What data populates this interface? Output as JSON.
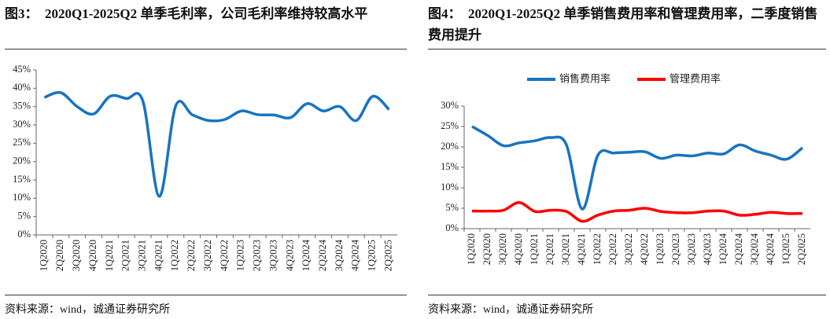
{
  "chart_data": [
    {
      "type": "line",
      "title": "图3：  2020Q1-2025Q2 单季毛利率，公司毛利率维持较高水平",
      "source": "资料来源：wind，诚通证券研究所",
      "categories": [
        "1Q2020",
        "2Q2020",
        "3Q2020",
        "4Q2020",
        "1Q2021",
        "2Q2021",
        "3Q2021",
        "4Q2021",
        "1Q2022",
        "2Q2022",
        "3Q2022",
        "4Q2022",
        "1Q2023",
        "2Q2023",
        "3Q2023",
        "4Q2023",
        "1Q2024",
        "2Q2024",
        "3Q2024",
        "4Q2024",
        "1Q2025",
        "2Q2025"
      ],
      "series": [
        {
          "color": "#1874c1",
          "values": [
            37.5,
            38.8,
            35,
            33,
            37.8,
            37.2,
            36.5,
            10.5,
            35.2,
            32.8,
            31.2,
            31.5,
            33.8,
            32.8,
            32.7,
            32,
            35.8,
            33.8,
            35,
            31.2,
            37.8,
            34.2
          ]
        }
      ],
      "ylim": [
        0,
        45
      ],
      "yticks": [
        {
          "value": 0,
          "label": "0%"
        },
        {
          "value": 5,
          "label": "5%"
        },
        {
          "value": 10,
          "label": "10%"
        },
        {
          "value": 15,
          "label": "15%"
        },
        {
          "value": 20,
          "label": "20%"
        },
        {
          "value": 25,
          "label": "25%"
        },
        {
          "value": 30,
          "label": "30%"
        },
        {
          "value": 35,
          "label": "35%"
        },
        {
          "value": 40,
          "label": "40%"
        },
        {
          "value": 45,
          "label": "45%"
        }
      ]
    },
    {
      "type": "line",
      "title": "图4：  2020Q1-2025Q2 单季销售费用率和管理费用率，二季度销售费用提升",
      "source": "资料来源：wind，诚通证券研究所",
      "categories": [
        "1Q2020",
        "2Q2020",
        "3Q2020",
        "4Q2020",
        "1Q2021",
        "2Q2021",
        "3Q2021",
        "4Q2021",
        "1Q2022",
        "2Q2022",
        "3Q2022",
        "4Q2022",
        "1Q2023",
        "2Q2023",
        "3Q2023",
        "4Q2023",
        "1Q2024",
        "2Q2024",
        "3Q2024",
        "4Q2024",
        "1Q2025",
        "2Q2025"
      ],
      "series": [
        {
          "name": "销售费用率",
          "color": "#1874c1",
          "values": [
            25,
            22.8,
            20.3,
            21,
            21.5,
            22.3,
            20.5,
            4.8,
            18,
            18.5,
            18.7,
            18.8,
            17.2,
            18,
            17.8,
            18.5,
            18.3,
            20.5,
            19,
            18,
            17,
            19.8
          ]
        },
        {
          "name": "管理费用率",
          "color": "#ff0000",
          "values": [
            4.3,
            4.3,
            4.5,
            6.4,
            4.2,
            4.5,
            4.2,
            1.8,
            3.3,
            4.3,
            4.5,
            5,
            4.2,
            3.9,
            3.9,
            4.3,
            4.3,
            3.3,
            3.5,
            4,
            3.7,
            3.7
          ]
        }
      ],
      "legend": "top",
      "ylim": [
        0,
        30
      ],
      "yticks": [
        {
          "value": 0,
          "label": "0%"
        },
        {
          "value": 5,
          "label": "5%"
        },
        {
          "value": 10,
          "label": "10%"
        },
        {
          "value": 15,
          "label": "15%"
        },
        {
          "value": 20,
          "label": "20%"
        },
        {
          "value": 25,
          "label": "25%"
        },
        {
          "value": 30,
          "label": "30%"
        }
      ]
    }
  ]
}
